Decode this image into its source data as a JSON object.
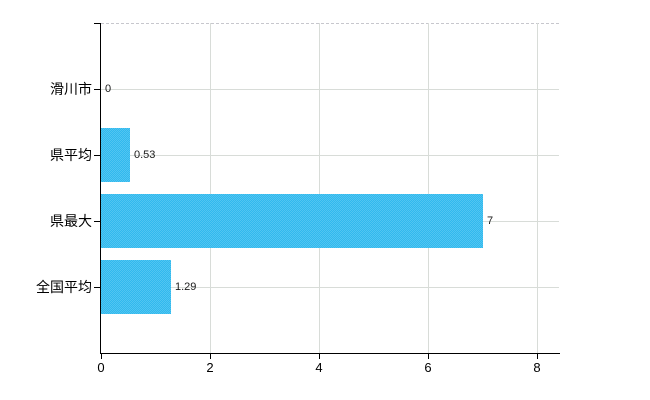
{
  "chart": {
    "background": "#ffffff",
    "bar_color": "#41bfef",
    "bar_dither_light": "#52c5f1",
    "bar_dither_dark": "#30b9ee",
    "gridline_color": "#d8dcd8",
    "axis_color": "#000000",
    "category_label_color": "#000000",
    "value_label_color": "#1a1a1a"
  },
  "chart_data": {
    "type": "bar",
    "orientation": "horizontal",
    "title": "",
    "xlabel": "",
    "ylabel": "",
    "categories": [
      "滑川市",
      "県平均",
      "県最大",
      "全国平均"
    ],
    "values": [
      0,
      0.53,
      7,
      1.29
    ],
    "value_labels": [
      "0",
      "0.53",
      "7",
      "1.29"
    ],
    "x_tick_labels": [
      "0",
      "2",
      "4",
      "6",
      "8"
    ],
    "x_tick_values": [
      0,
      2,
      4,
      6,
      8
    ],
    "xlim": [
      0,
      8.4
    ],
    "grid": true,
    "legend_position": "none"
  }
}
